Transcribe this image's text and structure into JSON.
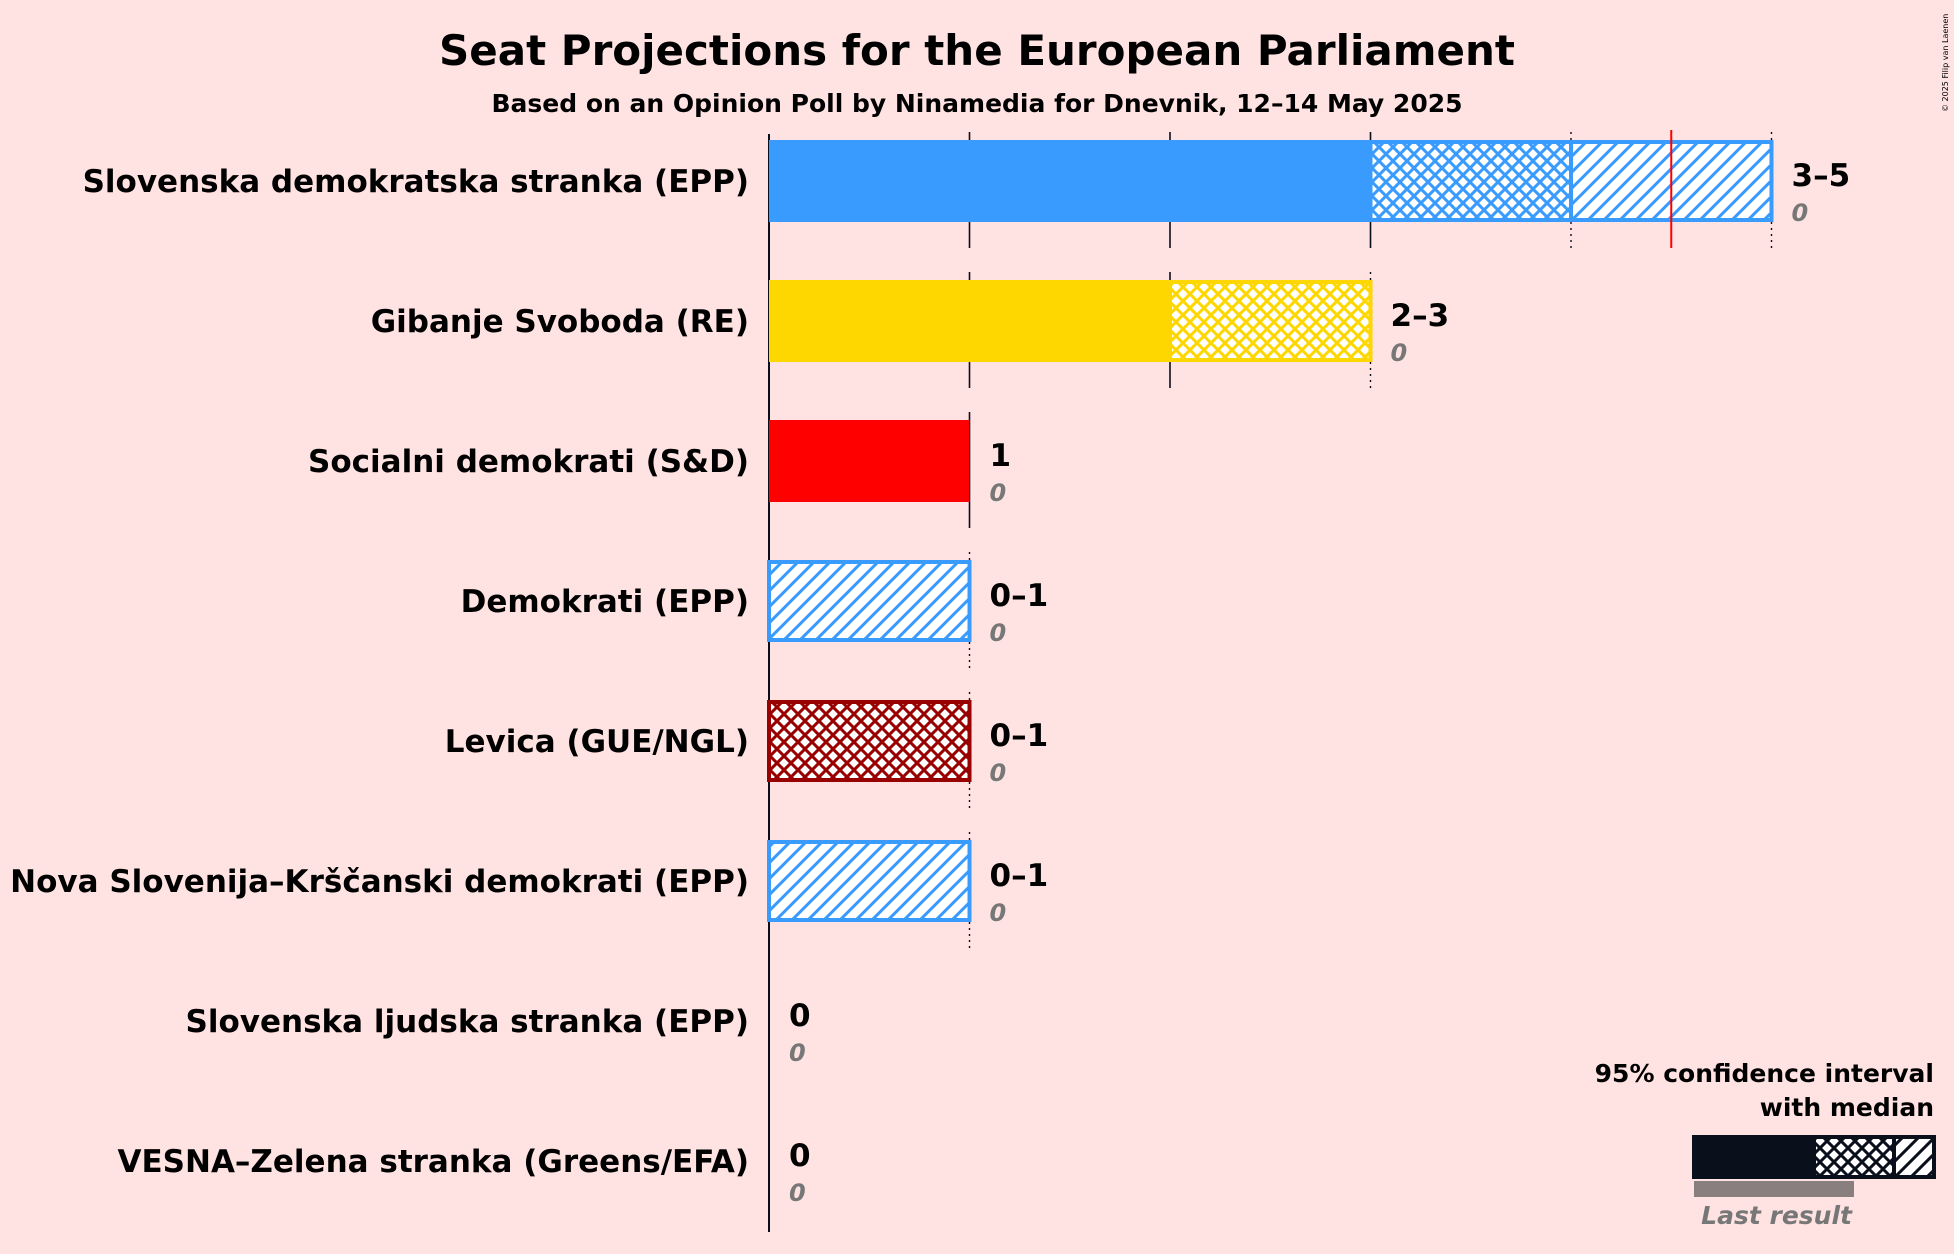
{
  "chart_data": {
    "type": "bar",
    "title": "Seat Projections for the European Parliament",
    "subtitle": "Based on an Opinion Poll by Ninamedia for Dnevnik, 12–14 May 2025",
    "copyright": "© 2025 Filip van Laenen",
    "xlim": [
      0,
      5
    ],
    "majority_seats": 4.5,
    "parties": [
      {
        "name": "Slovenska demokratska stranka (EPP)",
        "color": "#3a9bff",
        "border": "#3a9bff",
        "low": 3,
        "median": 3,
        "high": 5,
        "lower_95": 3,
        "upper_95": 4,
        "label": "3–5",
        "last_result": "0"
      },
      {
        "name": "Gibanje Svoboda (RE)",
        "color": "#ffd700",
        "border": "#ffd700",
        "low": 2,
        "median": 2,
        "high": 3,
        "lower_95": 2,
        "upper_95": 3,
        "label": "2–3",
        "last_result": "0"
      },
      {
        "name": "Socialni demokrati (S&D)",
        "color": "#ff0000",
        "border": "#ff0000",
        "low": 1,
        "median": 1,
        "high": 1,
        "lower_95": 1,
        "upper_95": 1,
        "label": "1",
        "last_result": "0"
      },
      {
        "name": "Demokrati (EPP)",
        "color": "#3a9bff",
        "border": "#3a9bff",
        "low": 0,
        "median": 0,
        "high": 1,
        "lower_95": 0,
        "upper_95": 0,
        "label": "0–1",
        "last_result": "0"
      },
      {
        "name": "Levica (GUE/NGL)",
        "color": "#990000",
        "border": "#990000",
        "low": 0,
        "median": 0,
        "high": 1,
        "lower_95": 0,
        "upper_95": 1,
        "label": "0–1",
        "last_result": "0"
      },
      {
        "name": "Nova Slovenija–Krščanski demokrati (EPP)",
        "color": "#3a9bff",
        "border": "#3a9bff",
        "low": 0,
        "median": 0,
        "high": 1,
        "lower_95": 0,
        "upper_95": 0,
        "label": "0–1",
        "last_result": "0"
      },
      {
        "name": "Slovenska ljudska stranka (EPP)",
        "color": "#3a9bff",
        "border": "#3a9bff",
        "low": 0,
        "median": 0,
        "high": 0,
        "lower_95": 0,
        "upper_95": 0,
        "label": "0",
        "last_result": "0"
      },
      {
        "name": "VESNA–Zelena stranka (Greens/EFA)",
        "color": "#3cb043",
        "border": "#3cb043",
        "low": 0,
        "median": 0,
        "high": 0,
        "lower_95": 0,
        "upper_95": 0,
        "label": "0",
        "last_result": "0"
      }
    ],
    "legend": {
      "line1": "95% confidence interval",
      "line2": "with median",
      "last_result": "Last result",
      "color": "#0a0f1c"
    }
  }
}
